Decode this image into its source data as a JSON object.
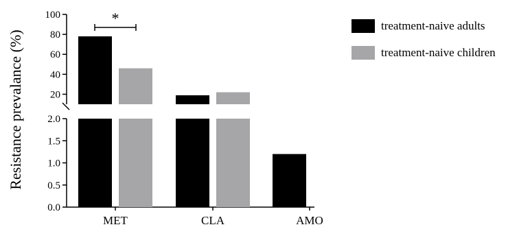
{
  "chart_data": {
    "type": "bar",
    "title": "",
    "xlabel": "",
    "ylabel": "Resistance prevalance (%)",
    "categories": [
      "MET",
      "CLA",
      "AMO"
    ],
    "series": [
      {
        "name": "treatment-naive adults",
        "color": "#000000",
        "values": [
          78,
          19,
          1.2
        ]
      },
      {
        "name": "treatment-naive children",
        "color": "#a6a6a8",
        "values": [
          46,
          22,
          0
        ]
      }
    ],
    "y_axis_broken": true,
    "y_segments": [
      {
        "range": [
          0,
          2.0
        ],
        "ticks": [
          "0.0",
          "0.5",
          "1.0",
          "1.5",
          "2.0"
        ]
      },
      {
        "range": [
          10,
          100
        ],
        "ticks": [
          "20",
          "40",
          "60",
          "80",
          "100"
        ]
      }
    ],
    "annotations": [
      {
        "text": "*",
        "between": "MET"
      }
    ],
    "legend_position": "top-right",
    "grid": false
  }
}
